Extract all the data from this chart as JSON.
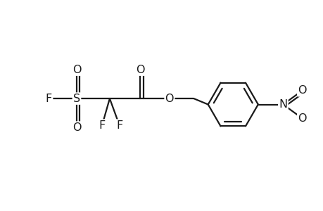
{
  "background_color": "#ffffff",
  "line_color": "#1a1a1a",
  "line_width": 1.6,
  "font_size": 11.5,
  "figsize": [
    4.6,
    3.0
  ],
  "dpi": 100,
  "xlim": [
    0,
    9.2
  ],
  "ylim": [
    0.2,
    3.5
  ]
}
